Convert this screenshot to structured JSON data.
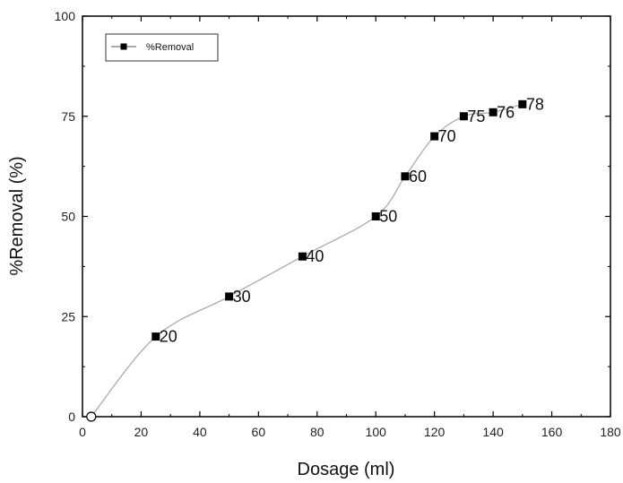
{
  "chart_data": {
    "type": "line",
    "x": [
      3,
      25,
      50,
      75,
      100,
      110,
      120,
      130,
      140,
      150
    ],
    "series": [
      {
        "name": "%Removal",
        "values": [
          0,
          20,
          30,
          40,
          50,
          60,
          70,
          75,
          76,
          78
        ],
        "marker": "square",
        "first_marker": "open-circle",
        "color": "#000000",
        "line_color": "#aaaaaa"
      }
    ],
    "data_labels": [
      "20",
      "30",
      "40",
      "50",
      "60",
      "70",
      "75",
      "76",
      "78"
    ],
    "xlabel": "Dosage (ml)",
    "ylabel": "%Removal (%)",
    "xlim": [
      0,
      180
    ],
    "ylim": [
      0,
      100
    ],
    "xticks": [
      0,
      20,
      40,
      60,
      80,
      100,
      120,
      140,
      160,
      180
    ],
    "yticks": [
      0,
      25,
      50,
      75,
      100
    ],
    "grid": false,
    "legend": {
      "position": "top-left",
      "entries": [
        "%Removal"
      ]
    }
  }
}
